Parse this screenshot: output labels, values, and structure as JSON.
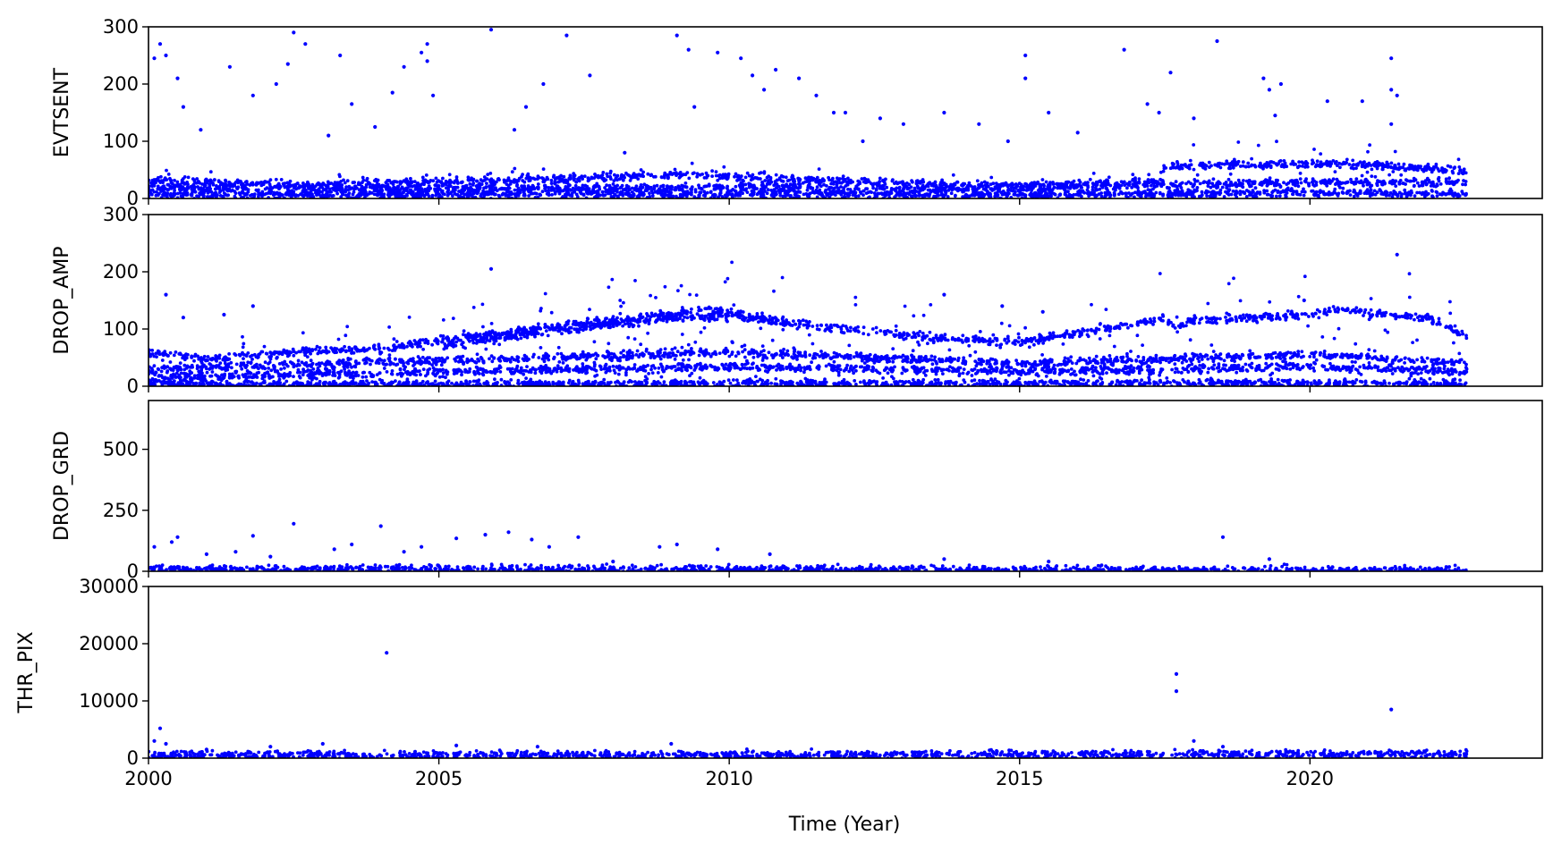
{
  "figure": {
    "xlabel": "Time (Year)",
    "marker_color": "#0000ff",
    "axes_color": "#000000",
    "background": "#ffffff"
  },
  "chart_data": [
    {
      "type": "scatter",
      "ylabel": "EVTSENT",
      "xlim": [
        2000,
        2024
      ],
      "ylim": [
        0,
        300
      ],
      "xticks": [
        2000,
        2005,
        2010,
        2015,
        2020
      ],
      "xtick_labels_visible": false,
      "yticks": [
        0,
        100,
        200,
        300
      ],
      "ytick_labels": [
        "0",
        "100",
        "200",
        "300"
      ],
      "grid": false,
      "bands": [
        {
          "name": "upper",
          "x": [
            2000.0,
            2003.0,
            2006.0,
            2009.0,
            2010.0,
            2013.0,
            2015.0,
            2017.4,
            2017.5,
            2020.5,
            2022.7
          ],
          "y": [
            30,
            24,
            30,
            42,
            38,
            26,
            22,
            30,
            57,
            62,
            48
          ]
        },
        {
          "name": "middle",
          "x": [
            2000.0,
            2005.0,
            2010.0,
            2015.0,
            2017.5,
            2020.0,
            2022.7
          ],
          "y": [
            18,
            16,
            20,
            16,
            24,
            28,
            28
          ]
        },
        {
          "name": "lower",
          "x": [
            2000.0,
            2010.0,
            2015.0,
            2020.0,
            2022.7
          ],
          "y": [
            6,
            8,
            6,
            10,
            8
          ]
        }
      ],
      "outliers": [
        [
          2000.1,
          245
        ],
        [
          2000.2,
          270
        ],
        [
          2000.3,
          250
        ],
        [
          2000.5,
          210
        ],
        [
          2000.6,
          160
        ],
        [
          2000.9,
          120
        ],
        [
          2001.4,
          230
        ],
        [
          2001.8,
          180
        ],
        [
          2002.2,
          200
        ],
        [
          2002.4,
          235
        ],
        [
          2002.5,
          290
        ],
        [
          2002.7,
          270
        ],
        [
          2003.1,
          110
        ],
        [
          2003.3,
          250
        ],
        [
          2003.5,
          165
        ],
        [
          2003.9,
          125
        ],
        [
          2004.2,
          185
        ],
        [
          2004.4,
          230
        ],
        [
          2004.7,
          255
        ],
        [
          2004.8,
          270
        ],
        [
          2004.8,
          240
        ],
        [
          2004.9,
          180
        ],
        [
          2005.9,
          295
        ],
        [
          2006.3,
          120
        ],
        [
          2006.5,
          160
        ],
        [
          2006.8,
          200
        ],
        [
          2007.2,
          285
        ],
        [
          2007.6,
          215
        ],
        [
          2008.2,
          80
        ],
        [
          2009.1,
          285
        ],
        [
          2009.3,
          260
        ],
        [
          2009.4,
          160
        ],
        [
          2009.8,
          255
        ],
        [
          2010.2,
          245
        ],
        [
          2010.4,
          215
        ],
        [
          2010.6,
          190
        ],
        [
          2010.8,
          225
        ],
        [
          2011.2,
          210
        ],
        [
          2011.5,
          180
        ],
        [
          2011.8,
          150
        ],
        [
          2012.0,
          150
        ],
        [
          2012.3,
          100
        ],
        [
          2012.6,
          140
        ],
        [
          2013.0,
          130
        ],
        [
          2013.7,
          150
        ],
        [
          2014.3,
          130
        ],
        [
          2014.8,
          100
        ],
        [
          2015.1,
          250
        ],
        [
          2015.1,
          210
        ],
        [
          2015.5,
          150
        ],
        [
          2016.0,
          115
        ],
        [
          2016.8,
          260
        ],
        [
          2017.2,
          165
        ],
        [
          2017.4,
          150
        ],
        [
          2017.6,
          220
        ],
        [
          2018.0,
          140
        ],
        [
          2018.4,
          275
        ],
        [
          2019.2,
          210
        ],
        [
          2019.3,
          190
        ],
        [
          2019.4,
          145
        ],
        [
          2019.5,
          200
        ],
        [
          2020.3,
          170
        ],
        [
          2020.9,
          170
        ],
        [
          2021.4,
          245
        ],
        [
          2021.4,
          190
        ],
        [
          2021.4,
          130
        ],
        [
          2021.5,
          180
        ]
      ]
    },
    {
      "type": "scatter",
      "ylabel": "DROP_AMP",
      "xlim": [
        2000,
        2024
      ],
      "ylim": [
        0,
        300
      ],
      "xticks": [
        2000,
        2005,
        2010,
        2015,
        2020
      ],
      "xtick_labels_visible": false,
      "yticks": [
        0,
        100,
        200,
        300
      ],
      "ytick_labels": [
        "0",
        "100",
        "200",
        "300"
      ],
      "grid": false,
      "bands": [
        {
          "name": "main",
          "x": [
            2000.0,
            2001.0,
            2002.0,
            2003.0,
            2004.0,
            2005.0,
            2006.0,
            2007.0,
            2008.0,
            2009.0,
            2009.5,
            2010.0,
            2011.0,
            2012.0,
            2013.0,
            2014.0,
            2015.0,
            2016.0,
            2017.0,
            2017.5,
            2017.7,
            2018.0,
            2019.0,
            2020.0,
            2020.5,
            2021.0,
            2022.0,
            2022.7
          ],
          "y": [
            60,
            48,
            55,
            62,
            65,
            80,
            92,
            105,
            115,
            125,
            135,
            130,
            110,
            100,
            90,
            82,
            78,
            92,
            110,
            118,
            102,
            115,
            120,
            125,
            135,
            128,
            120,
            88
          ]
        },
        {
          "name": "secondary",
          "x": [
            2005.0,
            2006.0,
            2007.0,
            2008.0,
            2009.0,
            2009.5,
            2010.0,
            2011.0
          ],
          "y": [
            70,
            85,
            98,
            108,
            118,
            120,
            122,
            112
          ]
        },
        {
          "name": "lower-1",
          "x": [
            2000.0,
            2005.0,
            2010.0,
            2015.0,
            2020.0,
            2022.7
          ],
          "y": [
            30,
            45,
            60,
            40,
            55,
            40
          ]
        },
        {
          "name": "lower-2",
          "x": [
            2000.0,
            2005.0,
            2010.0,
            2015.0,
            2020.0,
            2022.7
          ],
          "y": [
            15,
            25,
            35,
            25,
            35,
            25
          ]
        },
        {
          "name": "lower-3",
          "x": [
            2000.0,
            2010.0,
            2022.7
          ],
          "y": [
            3,
            5,
            5
          ]
        }
      ],
      "outliers": [
        [
          2000.3,
          160
        ],
        [
          2000.6,
          120
        ],
        [
          2001.3,
          125
        ],
        [
          2001.8,
          140
        ],
        [
          2005.9,
          205
        ],
        [
          2013.7,
          160
        ],
        [
          2014.7,
          140
        ],
        [
          2015.4,
          130
        ],
        [
          2019.9,
          150
        ],
        [
          2021.5,
          230
        ]
      ]
    },
    {
      "type": "scatter",
      "ylabel": "DROP_GRD",
      "xlim": [
        2000,
        2024
      ],
      "ylim": [
        0,
        700
      ],
      "xticks": [
        2000,
        2005,
        2010,
        2015,
        2020
      ],
      "xtick_labels_visible": false,
      "yticks": [
        0,
        250,
        500
      ],
      "ytick_labels": [
        "0",
        "250",
        "500"
      ],
      "grid": false,
      "bands": [
        {
          "name": "baseline",
          "x": [
            2000.0,
            2010.0,
            2022.7
          ],
          "y": [
            10,
            8,
            5
          ]
        }
      ],
      "outliers": [
        [
          2000.1,
          100
        ],
        [
          2000.4,
          120
        ],
        [
          2000.5,
          140
        ],
        [
          2001.0,
          70
        ],
        [
          2001.5,
          80
        ],
        [
          2001.8,
          145
        ],
        [
          2002.1,
          60
        ],
        [
          2002.5,
          195
        ],
        [
          2003.2,
          90
        ],
        [
          2003.5,
          110
        ],
        [
          2004.0,
          185
        ],
        [
          2004.4,
          80
        ],
        [
          2004.7,
          100
        ],
        [
          2005.3,
          135
        ],
        [
          2005.8,
          150
        ],
        [
          2006.2,
          160
        ],
        [
          2006.6,
          130
        ],
        [
          2006.9,
          100
        ],
        [
          2007.4,
          140
        ],
        [
          2008.0,
          40
        ],
        [
          2008.8,
          100
        ],
        [
          2009.1,
          110
        ],
        [
          2009.8,
          90
        ],
        [
          2010.7,
          70
        ],
        [
          2013.7,
          50
        ],
        [
          2015.5,
          40
        ],
        [
          2018.5,
          140
        ],
        [
          2019.3,
          50
        ]
      ]
    },
    {
      "type": "scatter",
      "ylabel": "THR_PIX",
      "xlabel": "Time (Year)",
      "xlim": [
        2000,
        2024
      ],
      "ylim": [
        0,
        30000
      ],
      "xticks": [
        2000,
        2005,
        2010,
        2015,
        2020
      ],
      "xtick_labels_visible": true,
      "xtick_labels": [
        "2000",
        "2005",
        "2010",
        "2015",
        "2020"
      ],
      "yticks": [
        0,
        10000,
        20000,
        30000
      ],
      "ytick_labels": [
        "0",
        "10000",
        "20000",
        "30000"
      ],
      "grid": false,
      "bands": [
        {
          "name": "baseline",
          "x": [
            2000.0,
            2010.0,
            2022.7
          ],
          "y": [
            500,
            600,
            700
          ]
        }
      ],
      "outliers": [
        [
          2000.1,
          3000
        ],
        [
          2000.2,
          5200
        ],
        [
          2000.3,
          2500
        ],
        [
          2001.0,
          1500
        ],
        [
          2002.1,
          2000
        ],
        [
          2003.0,
          2500
        ],
        [
          2004.1,
          18400
        ],
        [
          2005.3,
          2200
        ],
        [
          2006.7,
          2000
        ],
        [
          2009.0,
          2500
        ],
        [
          2017.7,
          14700
        ],
        [
          2017.7,
          11700
        ],
        [
          2018.0,
          3000
        ],
        [
          2018.5,
          2000
        ],
        [
          2021.4,
          8500
        ]
      ]
    }
  ]
}
